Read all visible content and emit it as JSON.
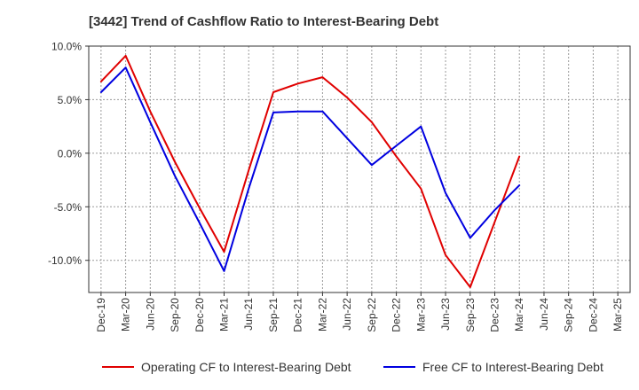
{
  "chart_data": {
    "type": "line",
    "title": "[3442]  Trend of Cashflow Ratio to Interest-Bearing Debt",
    "xlabel": "",
    "ylabel": "",
    "ylim": [
      -13,
      10
    ],
    "yticks": [
      10,
      5,
      0,
      -5,
      -10
    ],
    "ytick_labels": [
      "10.0%",
      "5.0%",
      "0.0%",
      "-5.0%",
      "-10.0%"
    ],
    "categories": [
      "Dec-19",
      "Mar-20",
      "Jun-20",
      "Sep-20",
      "Dec-20",
      "Mar-21",
      "Jun-21",
      "Sep-21",
      "Dec-21",
      "Mar-22",
      "Jun-22",
      "Sep-22",
      "Dec-22",
      "Mar-23",
      "Jun-23",
      "Sep-23",
      "Dec-23",
      "Mar-24",
      "Jun-24",
      "Sep-24",
      "Dec-24",
      "Mar-25"
    ],
    "grid": true,
    "legend_position": "bottom",
    "series": [
      {
        "name": "Operating CF to Interest-Bearing Debt",
        "color": "#e00000",
        "values": [
          6.7,
          9.1,
          3.9,
          -0.8,
          -5.1,
          -9.2,
          -1.6,
          5.7,
          6.5,
          7.1,
          5.2,
          2.9,
          -0.3,
          -3.3,
          -9.5,
          -12.5,
          -6.4,
          -0.3,
          null,
          null,
          null,
          null
        ]
      },
      {
        "name": "Free CF to Interest-Bearing Debt",
        "color": "#0000e0",
        "values": [
          5.7,
          8.0,
          2.9,
          -2.1,
          -6.5,
          -11.0,
          -3.3,
          3.8,
          3.9,
          3.9,
          1.4,
          -1.1,
          0.7,
          2.5,
          -3.7,
          -7.9,
          -5.3,
          -3.0,
          null,
          null,
          null,
          null
        ]
      }
    ]
  }
}
